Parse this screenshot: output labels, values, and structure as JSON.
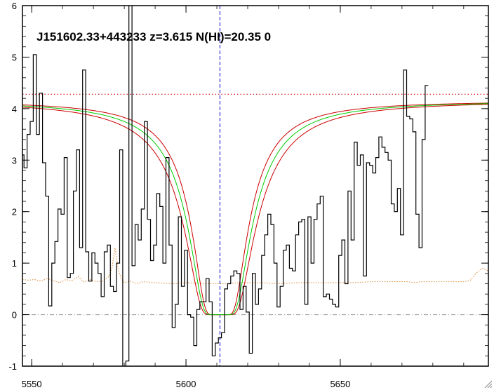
{
  "chart_data": {
    "type": "line",
    "title": "J151602.33+443233 z=3.615 N(HI)=20.35 0",
    "xlabel": "",
    "ylabel": "",
    "xlim": [
      5547,
      5698
    ],
    "ylim": [
      -1,
      6
    ],
    "x_ticks": [
      5550,
      5600,
      5650
    ],
    "y_ticks": [
      -1,
      0,
      1,
      2,
      3,
      4,
      5,
      6
    ],
    "grid": false,
    "center_x": 5611,
    "continuum_level": 4.28,
    "zero_level": 0,
    "colors": {
      "flux": "#000000",
      "model": "#00cc00",
      "bounds": "#cc0000",
      "continuum": "#cc0000",
      "center": "#0000cc",
      "zero": "#999999",
      "error": "#d98a3a"
    },
    "series": [
      {
        "role": "flux",
        "x": [
          5547,
          5548,
          5549,
          5550,
          5551,
          5552,
          5553,
          5554,
          5555,
          5556,
          5557,
          5558,
          5559,
          5560,
          5561,
          5562,
          5563,
          5564,
          5565,
          5566,
          5567,
          5568,
          5569,
          5570,
          5571,
          5572,
          5573,
          5574,
          5575,
          5576,
          5577,
          5578,
          5579,
          5580,
          5581,
          5582,
          5583,
          5584,
          5585,
          5586,
          5587,
          5588,
          5589,
          5590,
          5591,
          5592,
          5593,
          5594,
          5595,
          5596,
          5597,
          5598,
          5599,
          5600,
          5601,
          5602,
          5603,
          5604,
          5605,
          5606,
          5607,
          5608,
          5609,
          5610,
          5611,
          5612,
          5613,
          5614,
          5615,
          5616,
          5617,
          5618,
          5619,
          5620,
          5621,
          5622,
          5623,
          5624,
          5625,
          5626,
          5627,
          5628,
          5629,
          5630,
          5631,
          5632,
          5633,
          5634,
          5635,
          5636,
          5637,
          5638,
          5639,
          5640,
          5641,
          5642,
          5643,
          5644,
          5645,
          5646,
          5647,
          5648,
          5649,
          5650,
          5651,
          5652,
          5653,
          5654,
          5655,
          5656,
          5657,
          5658,
          5659,
          5660,
          5661,
          5662,
          5663,
          5664,
          5665,
          5666,
          5667,
          5668,
          5669,
          5670,
          5671,
          5672,
          5673,
          5674,
          5675,
          5676,
          5677,
          5678
        ],
        "y": [
          3.1,
          2.85,
          3.5,
          3.75,
          5.05,
          3.5,
          4.3,
          2.95,
          2.3,
          0.17,
          1.0,
          1.42,
          2.05,
          1.95,
          3.05,
          0.72,
          0.8,
          2.4,
          3.2,
          1.3,
          4.75,
          1.22,
          0.65,
          1.2,
          1.0,
          0.8,
          0.35,
          1.22,
          1.35,
          0.55,
          0.45,
          1.0,
          3.2,
          -1.1,
          -0.9,
          6.2,
          0.95,
          1.75,
          1.45,
          2.05,
          3.75,
          1.85,
          1.05,
          1.35,
          2.35,
          2.1,
          1.0,
          3.05,
          1.35,
          -0.25,
          0.2,
          1.9,
          0.55,
          1.25,
          0.0,
          -0.05,
          -0.6,
          0.1,
          0.25,
          0.25,
          0.7,
          0.25,
          -0.8,
          -0.55,
          -0.45,
          -0.35,
          0.5,
          0.6,
          0.75,
          0.85,
          0.8,
          0.1,
          0.55,
          0.05,
          -0.75,
          0.8,
          0.2,
          0.5,
          1.15,
          1.55,
          1.95,
          1.75,
          1.0,
          0.15,
          0.55,
          1.25,
          1.35,
          0.9,
          0.85,
          1.55,
          1.8,
          1.85,
          0.2,
          1.9,
          1.0,
          1.85,
          2.15,
          2.3,
          0.35,
          0.4,
          0.3,
          0.2,
          0.15,
          1.15,
          1.45,
          0.6,
          2.4,
          1.45,
          3.35,
          2.9,
          3.1,
          0.75,
          2.95,
          2.9,
          2.75,
          3.05,
          3.45,
          3.25,
          3.15,
          3.0,
          2.15,
          2.0,
          2.45,
          1.55,
          4.75,
          3.85,
          3.8,
          3.55,
          1.95,
          1.3,
          3.4,
          4.45
        ]
      },
      {
        "role": "error",
        "x": [
          5547,
          5549,
          5551,
          5553,
          5555,
          5557,
          5559,
          5561,
          5563,
          5565,
          5567,
          5569,
          5571,
          5573,
          5575,
          5576,
          5577,
          5578,
          5579,
          5580,
          5582,
          5584,
          5586,
          5590,
          5596,
          5600,
          5606,
          5612,
          5618,
          5624,
          5630,
          5636,
          5642,
          5648,
          5654,
          5660,
          5666,
          5672,
          5674,
          5676,
          5678,
          5680,
          5682,
          5684,
          5686,
          5688,
          5690,
          5692,
          5694,
          5696,
          5698
        ],
        "y": [
          0.68,
          0.67,
          0.68,
          0.65,
          0.7,
          0.66,
          0.62,
          0.68,
          0.66,
          0.74,
          0.63,
          0.68,
          0.64,
          0.65,
          0.74,
          0.9,
          1.3,
          0.9,
          0.7,
          0.62,
          0.65,
          0.6,
          0.64,
          0.62,
          0.6,
          0.62,
          0.6,
          0.6,
          0.62,
          0.62,
          0.6,
          0.62,
          0.62,
          0.62,
          0.62,
          0.64,
          0.64,
          0.64,
          0.62,
          0.64,
          0.64,
          0.64,
          0.64,
          0.64,
          0.64,
          0.64,
          0.64,
          0.66,
          0.8,
          0.9,
          0.85
        ]
      }
    ],
    "model": {
      "n_hi": 20.35,
      "logN_upper": 20.45,
      "logN_lower": 20.25,
      "continuum_amplitude": 4.15
    }
  }
}
